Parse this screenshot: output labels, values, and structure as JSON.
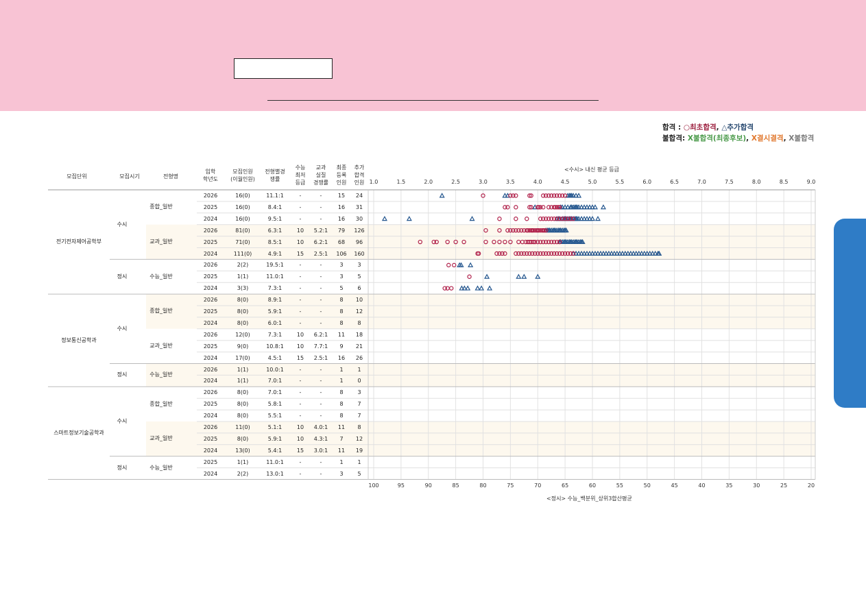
{
  "legend": {
    "row1_label": "합격",
    "row1_sep": " : ",
    "row1_item1": "○최초합격",
    "row1_comma": ", ",
    "row1_item2": "△추가합격",
    "row2_label": "불합격: ",
    "row2_item1": "X불합격(최종후보)",
    "row2_comma1": ", ",
    "row2_item2": "X결시결격",
    "row2_comma2": ", ",
    "row2_item3": "X불합격"
  },
  "colors": {
    "first_pass": "#b0204a",
    "extra_pass": "#24568e",
    "banner": "#f8c3d4",
    "side_tab": "#2f7cc6",
    "row_fill": "#fdf8ee"
  },
  "table": {
    "headers": {
      "unit": "모집단위",
      "season": "모집시기",
      "type": "전형명",
      "year": "입학\n학년도",
      "quota": "모집인원\n(이월인원)",
      "ratio": "전형별경\n쟁률",
      "min_grade": "수능\n최저\n등급",
      "real_ratio": "교과\n실질\n경쟁률",
      "final": "최종\n등록\n인원",
      "extra": "추가\n합격\n인원"
    },
    "units": [
      {
        "name": "전기전자제어공학부",
        "seasons": [
          {
            "name": "수시",
            "types": [
              {
                "name": "종합_일반",
                "rows": [
                  [
                    "2026",
                    "16(0)",
                    "11.1:1",
                    "-",
                    "-",
                    "15",
                    "24"
                  ],
                  [
                    "2025",
                    "16(0)",
                    "8.4:1",
                    "-",
                    "-",
                    "16",
                    "31"
                  ],
                  [
                    "2024",
                    "16(0)",
                    "9.5:1",
                    "-",
                    "-",
                    "16",
                    "30"
                  ]
                ]
              },
              {
                "name": "교과_일반",
                "rows": [
                  [
                    "2026",
                    "81(0)",
                    "6.3:1",
                    "10",
                    "5.2:1",
                    "79",
                    "126"
                  ],
                  [
                    "2025",
                    "71(0)",
                    "8.5:1",
                    "10",
                    "6.2:1",
                    "68",
                    "96"
                  ],
                  [
                    "2024",
                    "111(0)",
                    "4.9:1",
                    "15",
                    "2.5:1",
                    "106",
                    "160"
                  ]
                ]
              }
            ]
          },
          {
            "name": "정시",
            "types": [
              {
                "name": "수능_일반",
                "rows": [
                  [
                    "2026",
                    "2(2)",
                    "19.5:1",
                    "-",
                    "-",
                    "3",
                    "3"
                  ],
                  [
                    "2025",
                    "1(1)",
                    "11.0:1",
                    "-",
                    "-",
                    "3",
                    "5"
                  ],
                  [
                    "2024",
                    "3(3)",
                    "7.3:1",
                    "-",
                    "-",
                    "5",
                    "6"
                  ]
                ]
              }
            ]
          }
        ]
      },
      {
        "name": "정보통신공학과",
        "seasons": [
          {
            "name": "수시",
            "types": [
              {
                "name": "종합_일반",
                "rows": [
                  [
                    "2026",
                    "8(0)",
                    "8.9:1",
                    "-",
                    "-",
                    "8",
                    "10"
                  ],
                  [
                    "2025",
                    "8(0)",
                    "5.9:1",
                    "-",
                    "-",
                    "8",
                    "12"
                  ],
                  [
                    "2024",
                    "8(0)",
                    "6.0:1",
                    "-",
                    "-",
                    "8",
                    "8"
                  ]
                ]
              },
              {
                "name": "교과_일반",
                "rows": [
                  [
                    "2026",
                    "12(0)",
                    "7.3:1",
                    "10",
                    "6.2:1",
                    "11",
                    "18"
                  ],
                  [
                    "2025",
                    "9(0)",
                    "10.8:1",
                    "10",
                    "7.7:1",
                    "9",
                    "21"
                  ],
                  [
                    "2024",
                    "17(0)",
                    "4.5:1",
                    "15",
                    "2.5:1",
                    "16",
                    "26"
                  ]
                ]
              }
            ]
          },
          {
            "name": "정시",
            "types": [
              {
                "name": "수능_일반",
                "rows": [
                  [
                    "2026",
                    "1(1)",
                    "10.0:1",
                    "-",
                    "-",
                    "1",
                    "1"
                  ],
                  [
                    "2024",
                    "1(1)",
                    "7.0:1",
                    "-",
                    "-",
                    "1",
                    "0"
                  ]
                ]
              }
            ]
          }
        ]
      },
      {
        "name": "스마트정보기술공학과",
        "seasons": [
          {
            "name": "수시",
            "types": [
              {
                "name": "종합_일반",
                "rows": [
                  [
                    "2026",
                    "8(0)",
                    "7.0:1",
                    "-",
                    "-",
                    "8",
                    "3"
                  ],
                  [
                    "2025",
                    "8(0)",
                    "5.8:1",
                    "-",
                    "-",
                    "8",
                    "7"
                  ],
                  [
                    "2024",
                    "8(0)",
                    "5.5:1",
                    "-",
                    "-",
                    "8",
                    "7"
                  ]
                ]
              },
              {
                "name": "교과_일반",
                "rows": [
                  [
                    "2026",
                    "11(0)",
                    "5.1:1",
                    "10",
                    "4.0:1",
                    "11",
                    "8"
                  ],
                  [
                    "2025",
                    "8(0)",
                    "5.9:1",
                    "10",
                    "4.3:1",
                    "7",
                    "12"
                  ],
                  [
                    "2024",
                    "13(0)",
                    "5.4:1",
                    "15",
                    "3.0:1",
                    "11",
                    "19"
                  ]
                ]
              }
            ]
          },
          {
            "name": "정시",
            "types": [
              {
                "name": "수능_일반",
                "rows": [
                  [
                    "2025",
                    "1(1)",
                    "11.0:1",
                    "-",
                    "-",
                    "1",
                    "1"
                  ],
                  [
                    "2024",
                    "2(2)",
                    "13.0:1",
                    "-",
                    "-",
                    "3",
                    "5"
                  ]
                ]
              }
            ]
          }
        ]
      }
    ]
  },
  "chart_data": {
    "type": "scatter",
    "title": "<수시> 내신 평균 등급",
    "xlabel_bottom": "<정시> 수능_백분위_상위3합산평균",
    "top_axis": {
      "min": 1.0,
      "max": 9.0,
      "ticks": [
        "1.0",
        "1.5",
        "2.0",
        "2.5",
        "3.0",
        "3.5",
        "4.0",
        "4.5",
        "5.0",
        "5.5",
        "6.0",
        "6.5",
        "7.0",
        "7.5",
        "8.0",
        "8.5",
        "9.0"
      ]
    },
    "bottom_axis": {
      "min": 100,
      "max": 20,
      "ticks": [
        "100",
        "95",
        "90",
        "85",
        "80",
        "75",
        "70",
        "65",
        "60",
        "55",
        "50",
        "45",
        "40",
        "35",
        "30",
        "25",
        "20"
      ]
    },
    "series": [
      {
        "name": "최초합격",
        "marker": "circle"
      },
      {
        "name": "추가합격",
        "marker": "triangle"
      }
    ],
    "rows": [
      {
        "first": [
          3.0,
          3.5,
          3.55,
          3.6,
          3.85,
          3.88,
          4.1,
          4.15,
          4.2,
          4.25,
          4.3,
          4.35,
          4.4,
          4.45,
          4.5
        ],
        "extra": [
          2.25,
          3.4,
          3.45,
          4.55,
          4.58,
          4.6,
          4.62,
          4.65,
          4.7,
          4.75
        ]
      },
      {
        "first": [
          3.4,
          3.45,
          3.6,
          3.85,
          3.88,
          4.0,
          4.02,
          4.05,
          4.1,
          4.2,
          4.25,
          4.3,
          4.32,
          4.35,
          4.38,
          4.4
        ],
        "extra": [
          3.95,
          4.42,
          4.45,
          4.5,
          4.55,
          4.6,
          4.62,
          4.65,
          4.68,
          4.7,
          4.72,
          4.75,
          4.8,
          4.85,
          4.9,
          4.95,
          5.0,
          5.05,
          5.2
        ]
      },
      {
        "first": [
          3.3,
          3.6,
          3.8,
          4.05,
          4.1,
          4.15,
          4.2,
          4.25,
          4.3,
          4.35,
          4.4,
          4.45,
          4.5,
          4.55,
          4.6,
          4.65
        ],
        "extra": [
          1.2,
          1.65,
          2.8,
          4.35,
          4.38,
          4.4,
          4.45,
          4.48,
          4.5,
          4.52,
          4.55,
          4.58,
          4.6,
          4.62,
          4.65,
          4.68,
          4.7,
          4.72,
          4.75,
          4.8,
          4.85,
          4.9,
          4.95,
          5.0,
          5.1
        ]
      },
      {
        "first": [
          3.05,
          3.3,
          3.45,
          3.5,
          3.55,
          3.6,
          3.65,
          3.7,
          3.75,
          3.8,
          3.82,
          3.85,
          3.88,
          3.9,
          3.92,
          3.95,
          3.98,
          4.0,
          4.02,
          4.05,
          4.08,
          4.1,
          4.12,
          4.15
        ],
        "extra": [
          4.15,
          4.18,
          4.2,
          4.22,
          4.25,
          4.28,
          4.3,
          4.32,
          4.35,
          4.38,
          4.4,
          4.42,
          4.45,
          4.48,
          4.5,
          4.52
        ]
      },
      {
        "first": [
          1.85,
          2.1,
          2.15,
          2.35,
          2.5,
          2.65,
          3.05,
          3.2,
          3.3,
          3.4,
          3.5,
          3.65,
          3.72,
          3.78,
          3.82,
          3.85,
          3.88,
          3.92,
          3.95,
          4.0,
          4.05,
          4.1,
          4.15,
          4.2,
          4.25,
          4.3,
          4.35,
          4.4
        ],
        "extra": [
          4.4,
          4.42,
          4.45,
          4.48,
          4.5,
          4.52,
          4.55,
          4.58,
          4.6,
          4.62,
          4.65,
          4.68,
          4.7,
          4.72,
          4.75,
          4.78,
          4.8,
          4.82
        ]
      },
      {
        "first": [
          2.9,
          2.92,
          3.25,
          3.3,
          3.35,
          3.4,
          3.6,
          3.65,
          3.7,
          3.75,
          3.8,
          3.85,
          3.9,
          3.95,
          4.0,
          4.05,
          4.1,
          4.15,
          4.2,
          4.25,
          4.3,
          4.35,
          4.4,
          4.45,
          4.5,
          4.55,
          4.6,
          4.65
        ],
        "extra": [
          4.65,
          4.7,
          4.75,
          4.8,
          4.85,
          4.9,
          4.95,
          5.0,
          5.05,
          5.1,
          5.15,
          5.2,
          5.25,
          5.3,
          5.35,
          5.4,
          5.45,
          5.5,
          5.55,
          5.6,
          5.65,
          5.7,
          5.75,
          5.8,
          5.85,
          5.9,
          5.95,
          6.0,
          6.05,
          6.1,
          6.15,
          6.2,
          6.22
        ]
      }
    ],
    "jeongsi_rows": [
      {
        "first": [
          86.3,
          85.3
        ],
        "extra": [
          84.3,
          84.0,
          82.3
        ]
      },
      {
        "first": [
          82.5
        ],
        "extra": [
          79.3,
          73.5,
          72.5,
          70.0
        ]
      },
      {
        "first": [
          87.0,
          86.5,
          85.8
        ],
        "extra": [
          83.9,
          83.4,
          82.8,
          81.0,
          80.3,
          78.8
        ]
      }
    ]
  }
}
